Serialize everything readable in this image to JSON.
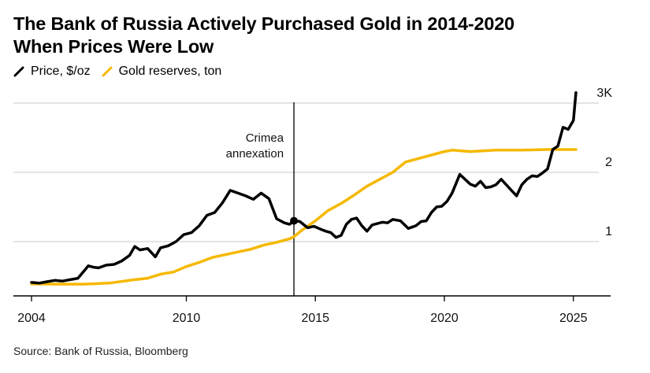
{
  "chart_data": {
    "type": "line",
    "title": "The Bank of Russia Actively Purchased Gold in 2014-2020 When Prices Were Low",
    "title_lines": [
      "The Bank of Russia Actively Purchased Gold in 2014-2020",
      "When Prices Were Low"
    ],
    "xlabel": "",
    "ylabel": "",
    "xlim": [
      2003.4,
      2026.6
    ],
    "ylim": [
      216,
      3200
    ],
    "grid": true,
    "legend_position": "top-left",
    "x_ticks": [
      {
        "value": 2004,
        "label": "2004"
      },
      {
        "value": 2010,
        "label": "2010"
      },
      {
        "value": 2015,
        "label": "2015"
      },
      {
        "value": 2020,
        "label": "2020"
      },
      {
        "value": 2025,
        "label": "2025"
      }
    ],
    "y_ticks": [
      {
        "value": 1000,
        "label": "1"
      },
      {
        "value": 2000,
        "label": "2"
      },
      {
        "value": 3000,
        "label": "3K"
      }
    ],
    "annotations": [
      {
        "x": 2014.17,
        "label_lines": [
          "Crimea",
          "annexation"
        ],
        "type": "vertical-line"
      }
    ],
    "series": [
      {
        "name": "Price, $/oz",
        "color": "#000000",
        "x": [
          2004.0,
          2004.3,
          2004.6,
          2004.9,
          2005.2,
          2005.5,
          2005.8,
          2006.0,
          2006.2,
          2006.4,
          2006.6,
          2006.9,
          2007.2,
          2007.5,
          2007.8,
          2008.0,
          2008.2,
          2008.5,
          2008.8,
          2009.0,
          2009.3,
          2009.6,
          2009.9,
          2010.2,
          2010.5,
          2010.8,
          2011.1,
          2011.4,
          2011.7,
          2012.0,
          2012.3,
          2012.6,
          2012.9,
          2013.2,
          2013.5,
          2013.8,
          2014.0,
          2014.17,
          2014.4,
          2014.7,
          2014.95,
          2015.2,
          2015.4,
          2015.6,
          2015.8,
          2016.0,
          2016.2,
          2016.4,
          2016.6,
          2016.8,
          2017.0,
          2017.2,
          2017.4,
          2017.6,
          2017.8,
          2018.0,
          2018.3,
          2018.6,
          2018.9,
          2019.1,
          2019.3,
          2019.5,
          2019.7,
          2019.9,
          2020.1,
          2020.3,
          2020.6,
          2020.8,
          2021.0,
          2021.2,
          2021.4,
          2021.6,
          2021.8,
          2022.0,
          2022.2,
          2022.4,
          2022.6,
          2022.8,
          2023.0,
          2023.2,
          2023.4,
          2023.6,
          2023.8,
          2024.0,
          2024.2,
          2024.4,
          2024.6,
          2024.8,
          2025.0,
          2025.1
        ],
        "values": [
          410,
          400,
          420,
          440,
          430,
          450,
          470,
          560,
          650,
          630,
          620,
          660,
          670,
          720,
          800,
          930,
          880,
          900,
          780,
          910,
          940,
          1000,
          1100,
          1130,
          1230,
          1380,
          1420,
          1560,
          1740,
          1700,
          1660,
          1610,
          1700,
          1620,
          1330,
          1270,
          1250,
          1300,
          1290,
          1200,
          1220,
          1180,
          1150,
          1130,
          1060,
          1090,
          1250,
          1320,
          1340,
          1230,
          1150,
          1240,
          1260,
          1280,
          1270,
          1320,
          1300,
          1190,
          1230,
          1290,
          1300,
          1420,
          1500,
          1510,
          1580,
          1700,
          1970,
          1900,
          1830,
          1800,
          1870,
          1780,
          1790,
          1820,
          1900,
          1820,
          1740,
          1660,
          1820,
          1900,
          1950,
          1940,
          1990,
          2050,
          2330,
          2380,
          2650,
          2620,
          2750,
          3150
        ]
      },
      {
        "name": "Gold reserves, ton",
        "color": "#F5B800",
        "x": [
          2004.0,
          2005.0,
          2006.0,
          2007.0,
          2008.0,
          2008.5,
          2009.0,
          2009.5,
          2010.0,
          2010.5,
          2011.0,
          2011.5,
          2012.0,
          2012.5,
          2013.0,
          2013.5,
          2014.0,
          2014.17,
          2014.5,
          2015.0,
          2015.5,
          2016.0,
          2016.5,
          2017.0,
          2017.5,
          2018.0,
          2018.5,
          2019.0,
          2019.5,
          2020.0,
          2020.3,
          2021.0,
          2022.0,
          2023.0,
          2024.0,
          2025.0,
          2025.1
        ],
        "values": [
          390,
          385,
          385,
          400,
          450,
          470,
          530,
          560,
          640,
          700,
          770,
          810,
          850,
          890,
          950,
          990,
          1040,
          1070,
          1170,
          1300,
          1450,
          1550,
          1670,
          1800,
          1900,
          2000,
          2150,
          2200,
          2250,
          2300,
          2320,
          2300,
          2320,
          2320,
          2330,
          2330,
          2330
        ]
      }
    ],
    "source": "Source: Bank of Russia, Bloomberg"
  }
}
